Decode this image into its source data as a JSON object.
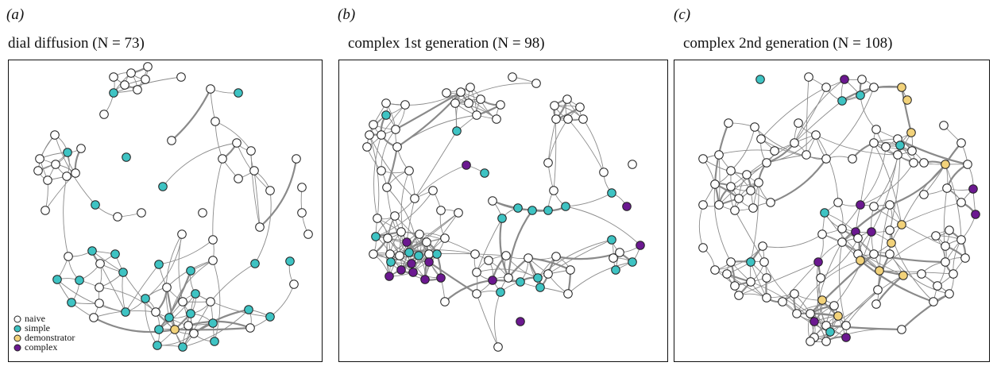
{
  "panels": [
    {
      "label": "(a)",
      "title": "dial diffusion (N = 73)"
    },
    {
      "label": "(b)",
      "title": "complex 1st generation (N = 98)"
    },
    {
      "label": "(c)",
      "title": "complex 2nd generation (N = 108)"
    }
  ],
  "legend": [
    "naive",
    "simple",
    "demonstrator",
    "complex"
  ]
}
